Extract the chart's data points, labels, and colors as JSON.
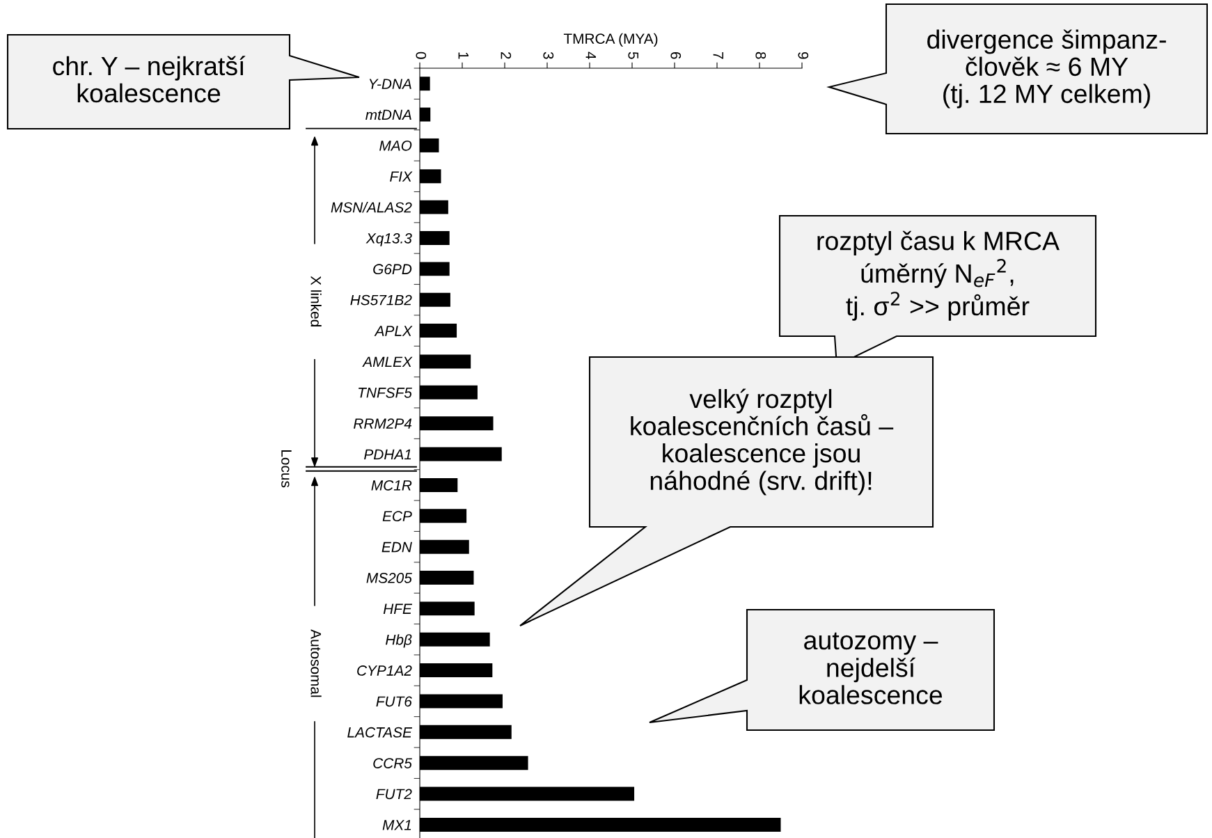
{
  "chart_data": {
    "type": "bar",
    "orientation": "horizontal",
    "xlabel": "TMRCA (MYA)",
    "ylabel": "Locus",
    "categories": [
      "Y-DNA",
      "mtDNA",
      "MAO",
      "FIX",
      "MSN/ALAS2",
      "Xq13.3",
      "G6PD",
      "HS571B2",
      "APLX",
      "AMLEX",
      "TNFSF5",
      "RRM2P4",
      "PDHA1",
      "MC1R",
      "ECP",
      "EDN",
      "MS205",
      "HFE",
      "Hbβ",
      "CYP1A2",
      "FUT6",
      "LACTASE",
      "CCR5",
      "FUT2",
      "MX1"
    ],
    "values": [
      0.24,
      0.25,
      0.45,
      0.5,
      0.67,
      0.7,
      0.7,
      0.72,
      0.87,
      1.2,
      1.36,
      1.73,
      1.93,
      0.89,
      1.1,
      1.16,
      1.27,
      1.29,
      1.65,
      1.71,
      1.95,
      2.16,
      2.55,
      5.05,
      8.5
    ],
    "color": "#000000",
    "xlim": [
      0,
      9
    ],
    "xticks": [
      0,
      1,
      2,
      3,
      4,
      5,
      6,
      7,
      8,
      9
    ],
    "grid": false,
    "legend": false,
    "annotations": [
      "chr. Y – nejkratší\nkoalescence",
      "divergence šimpanz-\nčlověk ≈ 6 MY\n(tj. 12 MY celkem)",
      "rozptyl času k MRCA\núměrný N$_{eF}$$^{2}$,\ntj. σ$^{2}$ >> průměr",
      "velký rozptyl\nkoalescenčních časů –\nkoalescence jsou\nnáhodné (srv. drift)!",
      "autozomy –\nnejdelší\nkoalescence",
      "X linked",
      "Autosomal"
    ]
  }
}
